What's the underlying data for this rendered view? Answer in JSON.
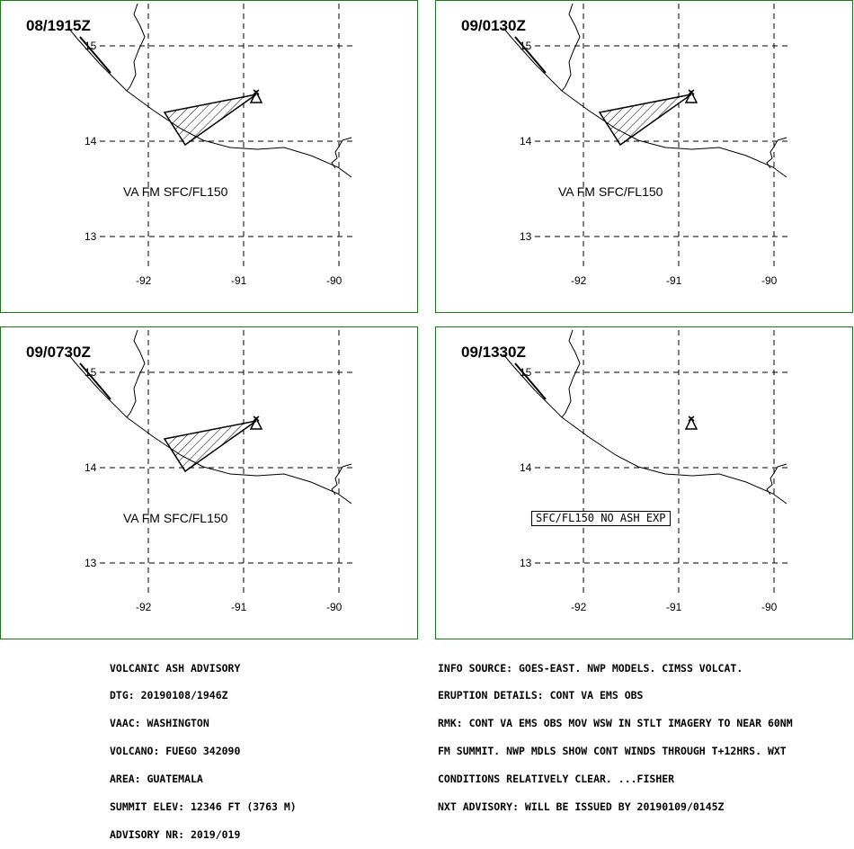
{
  "panels": [
    {
      "time": "08/1915Z",
      "label": "VA FM SFC/FL150",
      "ash": true
    },
    {
      "time": "09/0130Z",
      "label": "VA FM SFC/FL150",
      "ash": true
    },
    {
      "time": "09/0730Z",
      "label": "VA FM SFC/FL150",
      "ash": true
    },
    {
      "time": "09/1330Z",
      "label": "SFC/FL150 NO ASH EXP",
      "ash": false
    }
  ],
  "lat_labels": [
    "15",
    "14",
    "13"
  ],
  "lon_labels": [
    "-92",
    "-91",
    "-90"
  ],
  "advisory_left": [
    "VOLCANIC ASH ADVISORY",
    "DTG: 20190108/1946Z",
    "VAAC: WASHINGTON",
    "VOLCANO: FUEGO 342090",
    "AREA: GUATEMALA",
    "SUMMIT ELEV: 12346 FT (3763 M)",
    "ADVISORY NR: 2019/019"
  ],
  "advisory_right": [
    "INFO SOURCE: GOES-EAST. NWP MODELS. CIMSS VOLCAT.",
    "ERUPTION DETAILS: CONT VA EMS OBS",
    "RMK: CONT VA EMS OBS MOV WSW IN STLT IMAGERY TO NEAR 60NM",
    "FM SUMMIT. NWP MDLS SHOW CONT WINDS THROUGH T+12HRS. WXT",
    "CONDITIONS RELATIVELY CLEAR. ...FISHER",
    "NXT ADVISORY: WILL BE ISSUED BY 20190109/0145Z"
  ],
  "colors": {
    "border": "#1a7a1a",
    "line": "#000000"
  }
}
